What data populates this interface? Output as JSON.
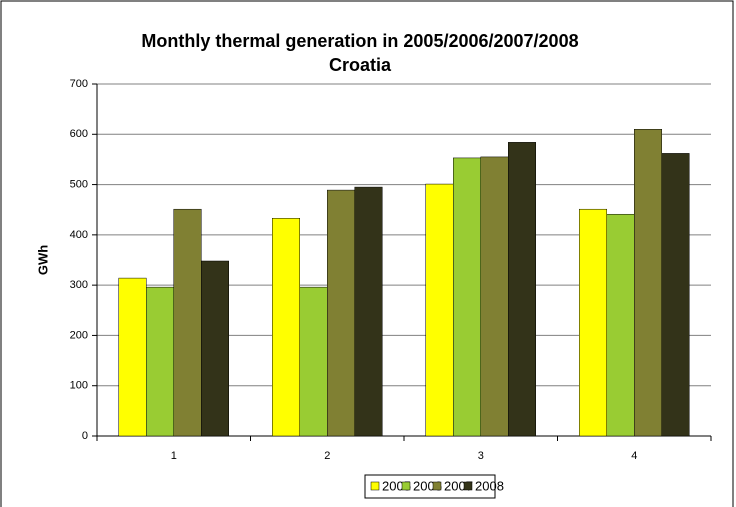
{
  "chart_data": {
    "type": "bar",
    "title": "Monthly thermal generation in 2005/2006/2007/2008",
    "subtitle": "Croatia",
    "y_label": "GWh",
    "categories": [
      "1",
      "2",
      "3",
      "4"
    ],
    "series": [
      {
        "name": "2005",
        "color": "#ffff00",
        "values": [
          314,
          433,
          501,
          451
        ]
      },
      {
        "name": "2006",
        "color": "#99cc33",
        "values": [
          296,
          296,
          553,
          441
        ]
      },
      {
        "name": "2007",
        "color": "#808033",
        "values": [
          451,
          489,
          555,
          610
        ]
      },
      {
        "name": "2008",
        "color": "#333319",
        "values": [
          348,
          495,
          584,
          562
        ]
      }
    ],
    "ylim": [
      0,
      700
    ],
    "yticks": [
      0,
      100,
      200,
      300,
      400,
      500,
      600,
      700
    ],
    "grid": true,
    "legend": "bottom"
  }
}
